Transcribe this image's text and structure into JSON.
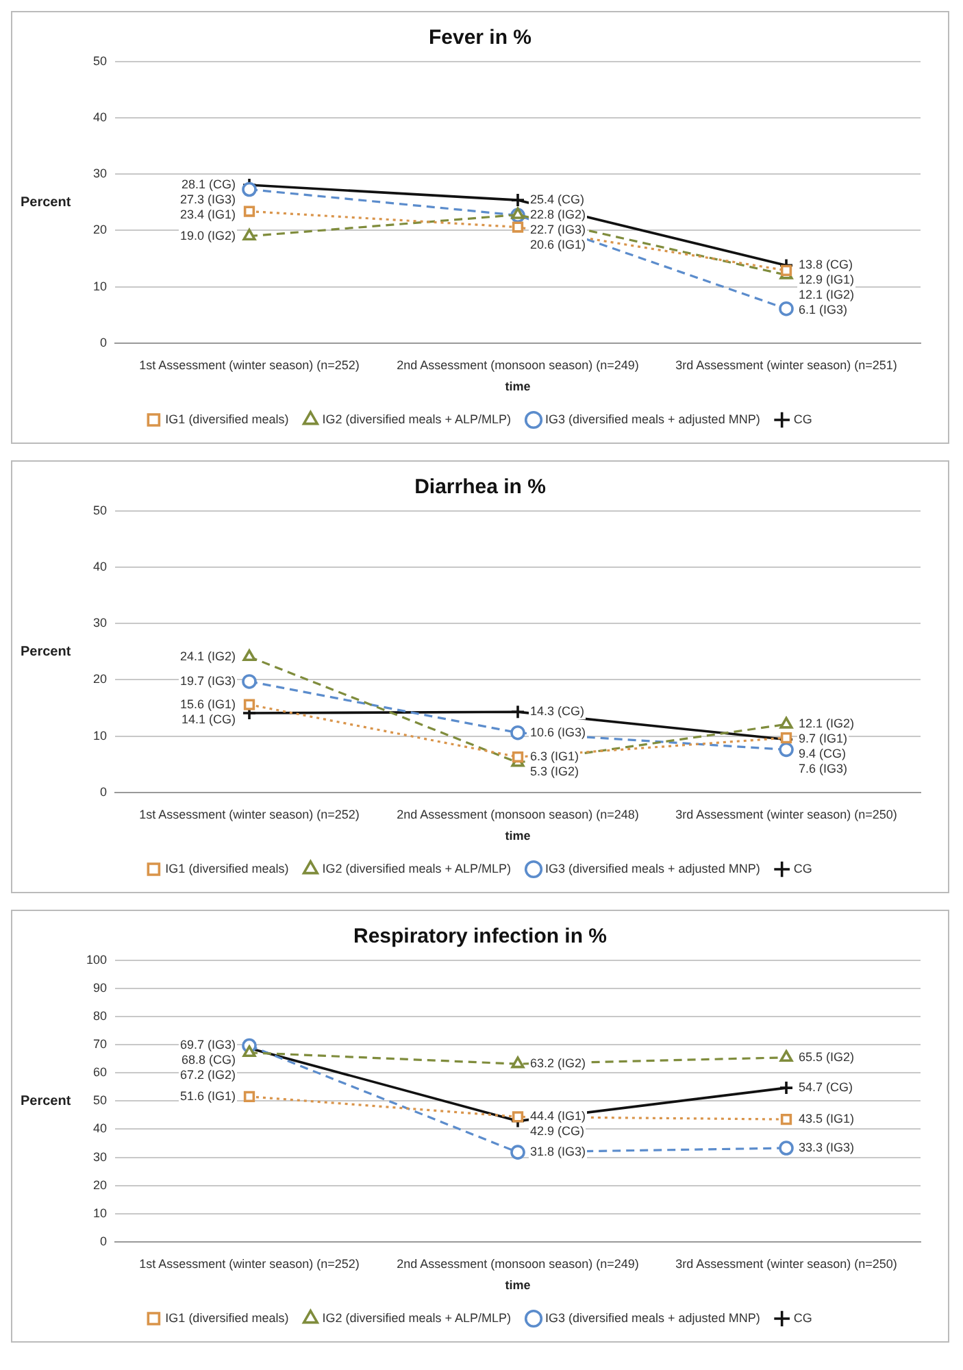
{
  "chart_data": [
    {
      "type": "line",
      "title": "Fever in %",
      "xlabel": "time",
      "ylabel": "Percent",
      "categories": [
        "1st Assessment (winter season) (n=252)",
        "2nd Assessment (monsoon season) (n=249)",
        "3rd Assessment (winter season) (n=251)"
      ],
      "ylim": [
        0,
        50
      ],
      "yticks": [
        0,
        10,
        20,
        30,
        40,
        50
      ],
      "grid": "y",
      "legend": "bottom",
      "series": [
        {
          "name": "IG1 (diversified meals)",
          "color": "#d9944a",
          "marker": "square",
          "line_style": "dotted",
          "values": [
            23.4,
            20.6,
            12.9
          ],
          "value_labels": [
            "23.4 (IG1)",
            "20.6 (IG1)",
            "12.9 (IG1)"
          ]
        },
        {
          "name": "IG2 (diversified meals + ALP/MLP)",
          "color": "#7f8c3c",
          "marker": "triangle",
          "line_style": "dashed",
          "values": [
            19.0,
            22.8,
            12.1
          ],
          "value_labels": [
            "19.0 (IG2)",
            "22.8 (IG2)",
            "12.1 (IG2)"
          ]
        },
        {
          "name": "IG3 (diversified meals + adjusted MNP)",
          "color": "#5b8ccc",
          "marker": "circle",
          "line_style": "dashed",
          "values": [
            27.3,
            22.7,
            6.1
          ],
          "value_labels": [
            "27.3 (IG3)",
            "22.7 (IG3)",
            "6.1 (IG3)"
          ]
        },
        {
          "name": "CG",
          "color": "#111111",
          "marker": "cross",
          "line_style": "solid",
          "values": [
            28.1,
            25.4,
            13.8
          ],
          "value_labels": [
            "28.1 (CG)",
            "25.4 (CG)",
            "13.8 (CG)"
          ]
        }
      ]
    },
    {
      "type": "line",
      "title": "Diarrhea in %",
      "xlabel": "time",
      "ylabel": "Percent",
      "categories": [
        "1st Assessment (winter season) (n=252)",
        "2nd Assessment (monsoon season) (n=248)",
        "3rd Assessment (winter season) (n=250)"
      ],
      "ylim": [
        0,
        50
      ],
      "yticks": [
        0,
        10,
        20,
        30,
        40,
        50
      ],
      "grid": "y",
      "legend": "bottom",
      "series": [
        {
          "name": "IG1 (diversified meals)",
          "color": "#d9944a",
          "marker": "square",
          "line_style": "dotted",
          "values": [
            15.6,
            6.3,
            9.7
          ],
          "value_labels": [
            "15.6 (IG1)",
            "6.3 (IG1)",
            "9.7 (IG1)"
          ]
        },
        {
          "name": "IG2 (diversified meals + ALP/MLP)",
          "color": "#7f8c3c",
          "marker": "triangle",
          "line_style": "dashed",
          "values": [
            24.1,
            5.3,
            12.1
          ],
          "value_labels": [
            "24.1 (IG2)",
            "5.3 (IG2)",
            "12.1 (IG2)"
          ]
        },
        {
          "name": "IG3 (diversified meals + adjusted MNP)",
          "color": "#5b8ccc",
          "marker": "circle",
          "line_style": "dashed",
          "values": [
            19.7,
            10.6,
            7.6
          ],
          "value_labels": [
            "19.7 (IG3)",
            "10.6 (IG3)",
            "7.6 (IG3)"
          ]
        },
        {
          "name": "CG",
          "color": "#111111",
          "marker": "cross",
          "line_style": "solid",
          "values": [
            14.1,
            14.3,
            9.4
          ],
          "value_labels": [
            "14.1 (CG)",
            "14.3 (CG)",
            "9.4 (CG)"
          ]
        }
      ]
    },
    {
      "type": "line",
      "title": "Respiratory infection in %",
      "xlabel": "time",
      "ylabel": "Percent",
      "categories": [
        "1st Assessment (winter season) (n=252)",
        "2nd Assessment (monsoon season) (n=249)",
        "3rd Assessment (winter season) (n=250)"
      ],
      "ylim": [
        0,
        100
      ],
      "yticks": [
        0,
        10,
        20,
        30,
        40,
        50,
        60,
        70,
        80,
        90,
        100
      ],
      "grid": "y",
      "legend": "bottom",
      "series": [
        {
          "name": "IG1 (diversified meals)",
          "color": "#d9944a",
          "marker": "square",
          "line_style": "dotted",
          "values": [
            51.6,
            44.4,
            43.5
          ],
          "value_labels": [
            "51.6 (IG1)",
            "44.4 (IG1)",
            "43.5 (IG1)"
          ]
        },
        {
          "name": "IG2 (diversified meals + ALP/MLP)",
          "color": "#7f8c3c",
          "marker": "triangle",
          "line_style": "dashed",
          "values": [
            67.2,
            63.2,
            65.5
          ],
          "value_labels": [
            "67.2 (IG2)",
            "63.2 (IG2)",
            "65.5 (IG2)"
          ]
        },
        {
          "name": "IG3 (diversified meals + adjusted MNP)",
          "color": "#5b8ccc",
          "marker": "circle",
          "line_style": "dashed",
          "values": [
            69.7,
            31.8,
            33.3
          ],
          "value_labels": [
            "69.7 (IG3)",
            "31.8 (IG3)",
            "33.3 (IG3)"
          ]
        },
        {
          "name": "CG",
          "color": "#111111",
          "marker": "cross",
          "line_style": "solid",
          "values": [
            68.8,
            42.9,
            54.7
          ],
          "value_labels": [
            "68.8 (CG)",
            "42.9 (CG)",
            "54.7 (CG)"
          ]
        }
      ]
    }
  ]
}
